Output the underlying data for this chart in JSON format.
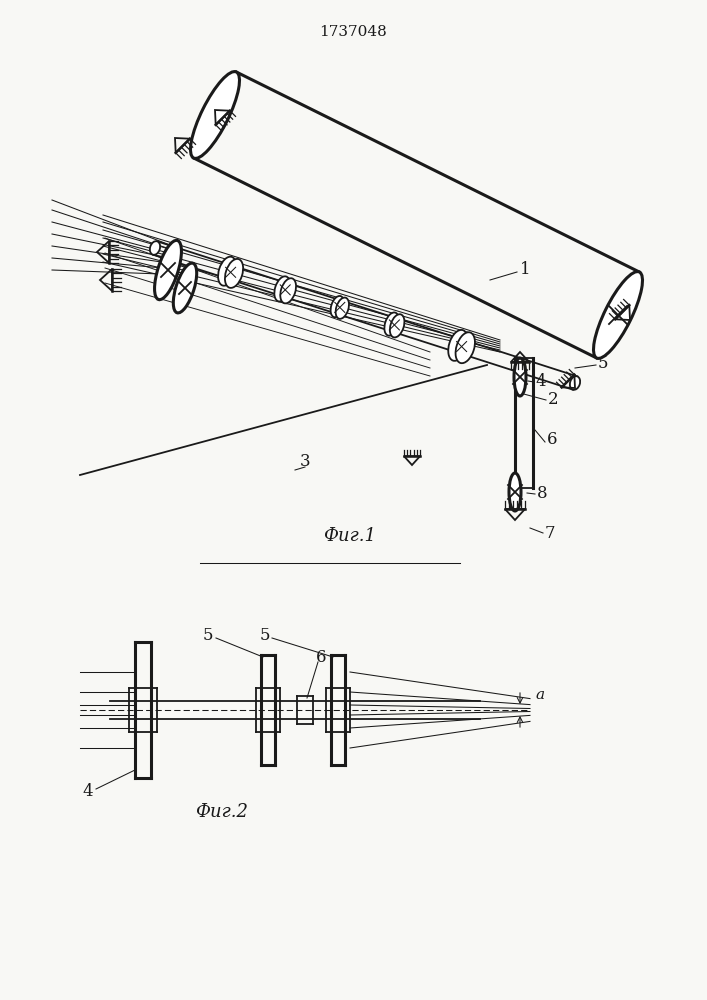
{
  "title": "1737048",
  "fig1_label": "Фиг.1",
  "fig2_label": "Фиг.2",
  "bg_color": "#f8f8f5",
  "line_color": "#1a1a1a",
  "lw": 1.3,
  "lw_thick": 2.2,
  "lw_thin": 0.75
}
